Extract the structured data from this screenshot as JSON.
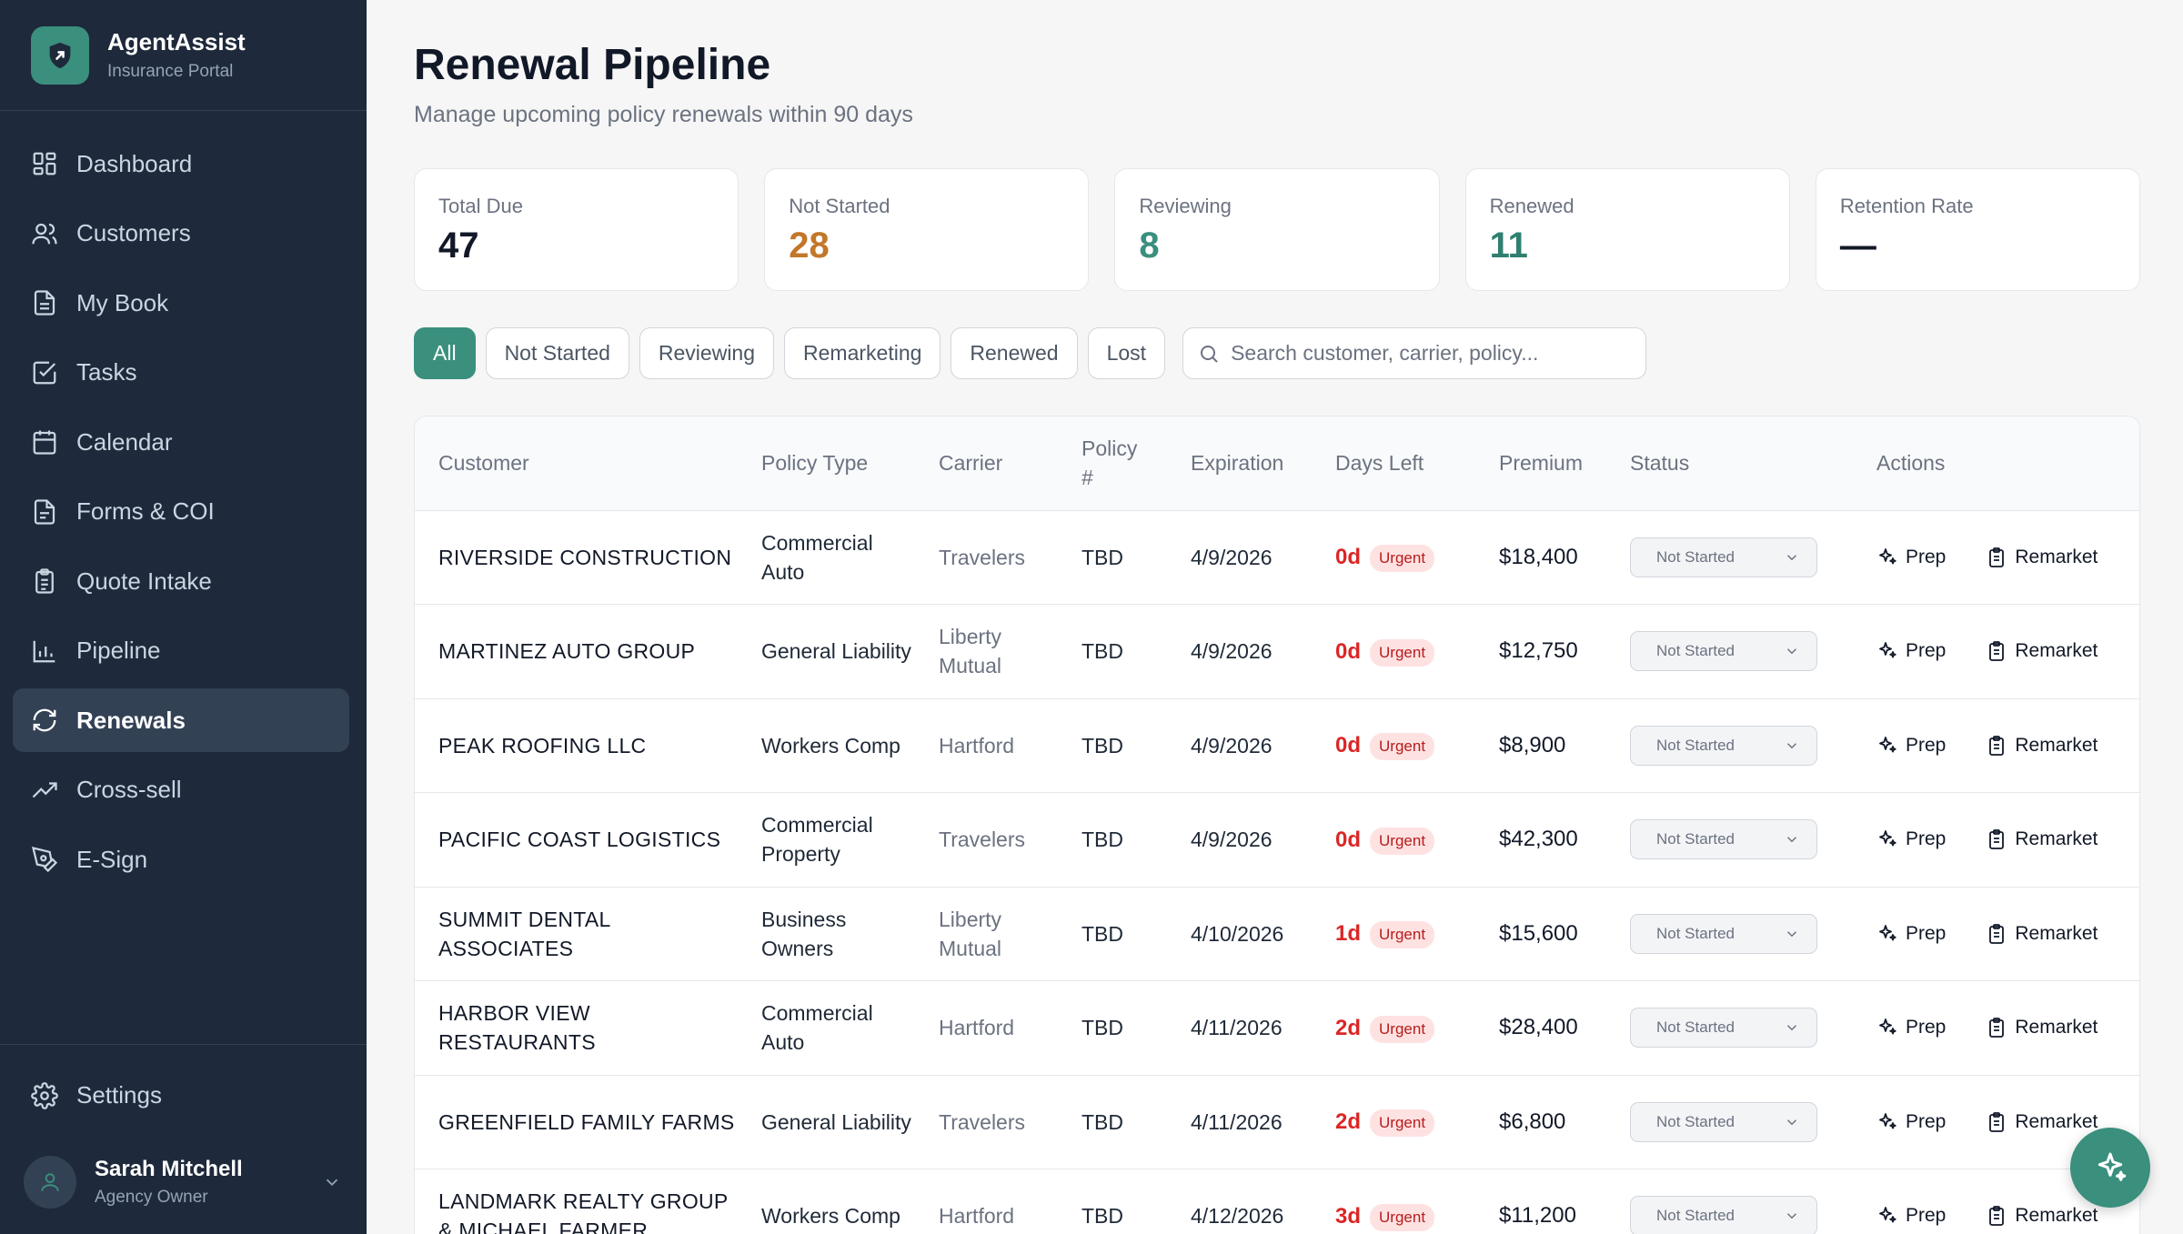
{
  "brand": {
    "name": "AgentAssist",
    "subtitle": "Insurance Portal"
  },
  "nav": [
    {
      "label": "Dashboard",
      "icon": "dashboard-icon"
    },
    {
      "label": "Customers",
      "icon": "users-icon"
    },
    {
      "label": "My Book",
      "icon": "document-icon"
    },
    {
      "label": "Tasks",
      "icon": "checkbox-icon"
    },
    {
      "label": "Calendar",
      "icon": "calendar-icon"
    },
    {
      "label": "Forms & COI",
      "icon": "file-icon"
    },
    {
      "label": "Quote Intake",
      "icon": "clipboard-icon"
    },
    {
      "label": "Pipeline",
      "icon": "bar-chart-icon"
    },
    {
      "label": "Renewals",
      "icon": "refresh-icon",
      "active": true
    },
    {
      "label": "Cross-sell",
      "icon": "trending-up-icon"
    },
    {
      "label": "E-Sign",
      "icon": "pen-icon"
    }
  ],
  "settings_label": "Settings",
  "user": {
    "name": "Sarah Mitchell",
    "role": "Agency Owner"
  },
  "page": {
    "title": "Renewal Pipeline",
    "subtitle": "Manage upcoming policy renewals within 90 days"
  },
  "stats": [
    {
      "label": "Total Due",
      "value": "47",
      "color": "#111827"
    },
    {
      "label": "Not Started",
      "value": "28",
      "color": "#c2772a"
    },
    {
      "label": "Reviewing",
      "value": "8",
      "color": "#3a8f7d"
    },
    {
      "label": "Renewed",
      "value": "11",
      "color": "#2f7f70"
    },
    {
      "label": "Retention Rate",
      "value": "—",
      "color": "#111827"
    }
  ],
  "filters": [
    "All",
    "Not Started",
    "Reviewing",
    "Remarketing",
    "Renewed",
    "Lost"
  ],
  "search": {
    "placeholder": "Search customer, carrier, policy..."
  },
  "table": {
    "headers": [
      "Customer",
      "Policy Type",
      "Carrier",
      "Policy #",
      "Expiration",
      "Days Left",
      "Premium",
      "Status",
      "Actions"
    ],
    "urgent_label": "Urgent",
    "prep_label": "Prep",
    "remarket_label": "Remarket",
    "rows": [
      {
        "customer": "RIVERSIDE CONSTRUCTION",
        "type": "Commercial Auto",
        "carrier": "Travelers",
        "policy": "TBD",
        "expiration": "4/9/2026",
        "days": "0d",
        "premium": "$18,400",
        "status": "Not Started"
      },
      {
        "customer": "MARTINEZ AUTO GROUP",
        "type": "General Liability",
        "carrier": "Liberty Mutual",
        "policy": "TBD",
        "expiration": "4/9/2026",
        "days": "0d",
        "premium": "$12,750",
        "status": "Not Started"
      },
      {
        "customer": "PEAK ROOFING LLC",
        "type": "Workers Comp",
        "carrier": "Hartford",
        "policy": "TBD",
        "expiration": "4/9/2026",
        "days": "0d",
        "premium": "$8,900",
        "status": "Not Started"
      },
      {
        "customer": "PACIFIC COAST LOGISTICS",
        "type": "Commercial Property",
        "carrier": "Travelers",
        "policy": "TBD",
        "expiration": "4/9/2026",
        "days": "0d",
        "premium": "$42,300",
        "status": "Not Started"
      },
      {
        "customer": "SUMMIT DENTAL ASSOCIATES",
        "type": "Business Owners",
        "carrier": "Liberty Mutual",
        "policy": "TBD",
        "expiration": "4/10/2026",
        "days": "1d",
        "premium": "$15,600",
        "status": "Not Started"
      },
      {
        "customer": "HARBOR VIEW RESTAURANTS",
        "type": "Commercial Auto",
        "carrier": "Hartford",
        "policy": "TBD",
        "expiration": "4/11/2026",
        "days": "2d",
        "premium": "$28,400",
        "status": "Not Started"
      },
      {
        "customer": "GREENFIELD FAMILY FARMS",
        "type": "General Liability",
        "carrier": "Travelers",
        "policy": "TBD",
        "expiration": "4/11/2026",
        "days": "2d",
        "premium": "$6,800",
        "status": "Not Started"
      },
      {
        "customer": "LANDMARK REALTY GROUP & MICHAEL FARMER",
        "type": "Workers Comp",
        "carrier": "Hartford",
        "policy": "TBD",
        "expiration": "4/12/2026",
        "days": "3d",
        "premium": "$11,200",
        "status": "Not Started"
      }
    ]
  }
}
